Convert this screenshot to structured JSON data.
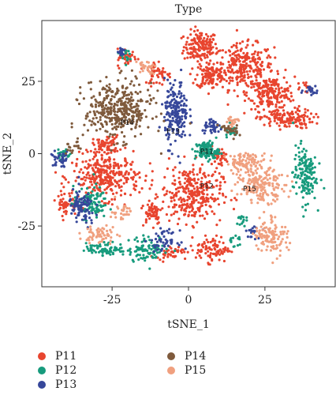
{
  "chart_data": {
    "type": "scatter",
    "title": "Type",
    "xlabel": "tSNE_1",
    "ylabel": "tSNE_2",
    "xlim": [
      -48,
      48
    ],
    "ylim": [
      -46,
      46
    ],
    "xticks": [
      -25,
      0,
      25
    ],
    "yticks": [
      -25,
      0,
      25
    ],
    "grid": false,
    "legend_position": "bottom",
    "series": [
      {
        "name": "P11",
        "color": "#e8452f"
      },
      {
        "name": "P12",
        "color": "#179b7d"
      },
      {
        "name": "P13",
        "color": "#36479a"
      },
      {
        "name": "P14",
        "color": "#7f5a3c"
      },
      {
        "name": "P15",
        "color": "#f0a07f"
      }
    ],
    "clusters": [
      {
        "series": "P11",
        "x": 4,
        "y": 37,
        "rx": 5,
        "ry": 5,
        "n": 160
      },
      {
        "series": "P11",
        "x": 18,
        "y": 30,
        "rx": 9,
        "ry": 7,
        "n": 280
      },
      {
        "series": "P11",
        "x": 27,
        "y": 21,
        "rx": 7,
        "ry": 5,
        "n": 200
      },
      {
        "series": "P11",
        "x": 7,
        "y": 27,
        "rx": 4,
        "ry": 4,
        "n": 110
      },
      {
        "series": "P11",
        "x": 32,
        "y": 12,
        "rx": 8,
        "ry": 3,
        "n": 150
      },
      {
        "series": "P11",
        "x": -27,
        "y": 3,
        "rx": 4,
        "ry": 3,
        "n": 70
      },
      {
        "series": "P11",
        "x": -27,
        "y": -8,
        "rx": 10,
        "ry": 7,
        "n": 320
      },
      {
        "series": "P11",
        "x": 1,
        "y": -14,
        "rx": 9,
        "ry": 9,
        "n": 320
      },
      {
        "series": "P11",
        "x": 8,
        "y": -33,
        "rx": 5,
        "ry": 4,
        "n": 90
      },
      {
        "series": "P11",
        "x": -12,
        "y": -20,
        "rx": 3,
        "ry": 4,
        "n": 60
      },
      {
        "series": "P11",
        "x": -20,
        "y": 33,
        "rx": 3,
        "ry": 3,
        "n": 40
      },
      {
        "series": "P11",
        "x": -10,
        "y": 28,
        "rx": 4,
        "ry": 4,
        "n": 50
      },
      {
        "series": "P11",
        "x": -40,
        "y": -17,
        "rx": 3,
        "ry": 4,
        "n": 50
      },
      {
        "series": "P11",
        "x": 10,
        "y": -1,
        "rx": 3,
        "ry": 3,
        "n": 40
      },
      {
        "series": "P11",
        "x": -6,
        "y": -34,
        "rx": 4,
        "ry": 2,
        "n": 40
      },
      {
        "series": "P11",
        "x": 38,
        "y": 23,
        "rx": 1.5,
        "ry": 1.5,
        "n": 10
      },
      {
        "series": "P12",
        "x": 6,
        "y": 1,
        "rx": 3.5,
        "ry": 3,
        "n": 110
      },
      {
        "series": "P12",
        "x": 38,
        "y": -7,
        "rx": 3.5,
        "ry": 9,
        "n": 150
      },
      {
        "series": "P12",
        "x": -32,
        "y": -17,
        "rx": 5,
        "ry": 5,
        "n": 100
      },
      {
        "series": "P12",
        "x": -27,
        "y": -33,
        "rx": 6,
        "ry": 2,
        "n": 80
      },
      {
        "series": "P12",
        "x": -13,
        "y": -33,
        "rx": 6,
        "ry": 4,
        "n": 90
      },
      {
        "series": "P12",
        "x": -41,
        "y": 0,
        "rx": 2,
        "ry": 2,
        "n": 20
      },
      {
        "series": "P12",
        "x": -21,
        "y": 34,
        "rx": 1.5,
        "ry": 2,
        "n": 15
      },
      {
        "series": "P12",
        "x": 14,
        "y": 8,
        "rx": 2,
        "ry": 2,
        "n": 20
      },
      {
        "series": "P12",
        "x": 17,
        "y": -23,
        "rx": 1.5,
        "ry": 2,
        "n": 15
      },
      {
        "series": "P12",
        "x": 15,
        "y": -30,
        "rx": 2,
        "ry": 2,
        "n": 15
      },
      {
        "series": "P13",
        "x": -4,
        "y": 14,
        "rx": 3.5,
        "ry": 10,
        "n": 200
      },
      {
        "series": "P13",
        "x": 8,
        "y": 9,
        "rx": 3,
        "ry": 2,
        "n": 40
      },
      {
        "series": "P13",
        "x": -35,
        "y": -19,
        "rx": 4,
        "ry": 6,
        "n": 90
      },
      {
        "series": "P13",
        "x": -42,
        "y": -2,
        "rx": 3,
        "ry": 2.5,
        "n": 35
      },
      {
        "series": "P13",
        "x": 40,
        "y": 22,
        "rx": 2,
        "ry": 1.5,
        "n": 20
      },
      {
        "series": "P13",
        "x": -22,
        "y": 36,
        "rx": 1.5,
        "ry": 2,
        "n": 18
      },
      {
        "series": "P13",
        "x": 21,
        "y": -27,
        "rx": 2,
        "ry": 2,
        "n": 20
      },
      {
        "series": "P13",
        "x": -8,
        "y": -30,
        "rx": 4,
        "ry": 3,
        "n": 50
      },
      {
        "series": "P14",
        "x": -23,
        "y": 15,
        "rx": 10,
        "ry": 9,
        "n": 380
      },
      {
        "series": "P14",
        "x": 13,
        "y": 8,
        "rx": 3,
        "ry": 2.5,
        "n": 30
      },
      {
        "series": "P14",
        "x": -38,
        "y": 2,
        "rx": 2,
        "ry": 2,
        "n": 15
      },
      {
        "series": "P15",
        "x": 24,
        "y": -11,
        "rx": 7,
        "ry": 5,
        "n": 180
      },
      {
        "series": "P15",
        "x": 19,
        "y": -3,
        "rx": 6,
        "ry": 3,
        "n": 100
      },
      {
        "series": "P15",
        "x": 27,
        "y": -28,
        "rx": 5,
        "ry": 6,
        "n": 120
      },
      {
        "series": "P15",
        "x": -29,
        "y": -28,
        "rx": 5,
        "ry": 3,
        "n": 60
      },
      {
        "series": "P15",
        "x": -14,
        "y": 30,
        "rx": 3,
        "ry": 2,
        "n": 30
      },
      {
        "series": "P15",
        "x": -22,
        "y": -20,
        "rx": 3,
        "ry": 3,
        "n": 30
      },
      {
        "series": "P15",
        "x": 14,
        "y": 11,
        "rx": 2,
        "ry": 2,
        "n": 20
      }
    ],
    "annotations": [
      {
        "text": "P14",
        "x": -20,
        "y": 10
      },
      {
        "text": "P13",
        "x": -5,
        "y": 7
      },
      {
        "text": "P11",
        "x": 6,
        "y": 0
      },
      {
        "text": "P12",
        "x": 6,
        "y": -12
      },
      {
        "text": "P15",
        "x": 20,
        "y": -13
      }
    ]
  }
}
